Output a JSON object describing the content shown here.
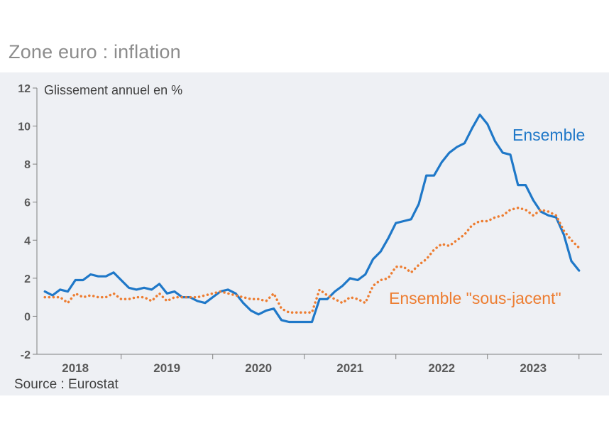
{
  "title": "Zone euro : inflation",
  "source": "Source : Eurostat",
  "colors": {
    "ensemble": "#1f78c8",
    "sous_jacent": "#ed7d31",
    "axis": "#7f7f7f"
  },
  "chart_data": {
    "type": "line",
    "ylabel": "Glissement annuel en %",
    "ylim": [
      -2,
      12
    ],
    "yticks": [
      -2,
      0,
      2,
      4,
      6,
      8,
      10,
      12
    ],
    "xlim": [
      2017.58,
      2023.75
    ],
    "xticks": [
      {
        "label": "2018",
        "x": 2018.0
      },
      {
        "label": "2019",
        "x": 2019.0
      },
      {
        "label": "2020",
        "x": 2020.0
      },
      {
        "label": "2021",
        "x": 2021.0
      },
      {
        "label": "2022",
        "x": 2022.0
      },
      {
        "label": "2023",
        "x": 2023.0
      }
    ],
    "x_start": 2017.667,
    "x_step": 0.08333,
    "series": [
      {
        "name": "Ensemble",
        "style": "solid",
        "values": [
          1.3,
          1.1,
          1.4,
          1.3,
          1.9,
          1.9,
          2.2,
          2.1,
          2.1,
          2.3,
          1.9,
          1.5,
          1.4,
          1.5,
          1.4,
          1.7,
          1.2,
          1.3,
          1.0,
          1.0,
          0.8,
          0.7,
          1.0,
          1.3,
          1.4,
          1.2,
          0.7,
          0.3,
          0.1,
          0.3,
          0.4,
          -0.2,
          -0.3,
          -0.3,
          -0.3,
          -0.3,
          0.9,
          0.9,
          1.3,
          1.6,
          2.0,
          1.9,
          2.2,
          3.0,
          3.4,
          4.1,
          4.9,
          5.0,
          5.1,
          5.9,
          7.4,
          7.4,
          8.1,
          8.6,
          8.9,
          9.1,
          9.9,
          10.6,
          10.1,
          9.2,
          8.6,
          8.5,
          6.9,
          6.9,
          6.1,
          5.5,
          5.3,
          5.2,
          4.3,
          2.9,
          2.4
        ]
      },
      {
        "name": "Ensemble \"sous-jacent\"",
        "style": "dotted",
        "values": [
          1.0,
          1.0,
          1.0,
          0.7,
          1.2,
          1.0,
          1.1,
          1.0,
          1.0,
          1.2,
          0.9,
          0.9,
          1.0,
          1.0,
          0.8,
          1.2,
          0.8,
          1.0,
          1.0,
          1.0,
          1.0,
          1.1,
          1.2,
          1.3,
          1.2,
          1.1,
          1.0,
          0.9,
          0.9,
          0.8,
          1.2,
          0.4,
          0.2,
          0.2,
          0.2,
          0.2,
          1.4,
          1.1,
          0.9,
          0.7,
          1.0,
          0.9,
          0.7,
          1.6,
          1.9,
          2.0,
          2.6,
          2.6,
          2.3,
          2.7,
          3.0,
          3.5,
          3.8,
          3.7,
          4.0,
          4.3,
          4.8,
          5.0,
          5.0,
          5.2,
          5.3,
          5.6,
          5.7,
          5.6,
          5.3,
          5.6,
          5.5,
          5.3,
          4.5,
          4.0,
          3.6
        ]
      }
    ]
  }
}
